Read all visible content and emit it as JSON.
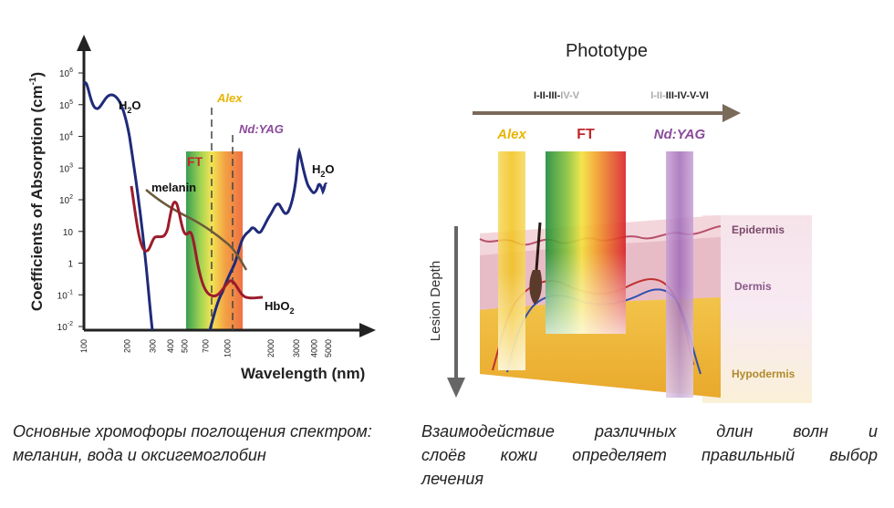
{
  "left_chart": {
    "y_axis_title": "Coefficients of Absorption (cm",
    "y_axis_title_sup": "-1",
    "y_axis_title_end": ")",
    "x_axis_title": "Wavelength (nm)",
    "y_ticks": [
      {
        "base": "10",
        "exp": "6"
      },
      {
        "base": "10",
        "exp": "5"
      },
      {
        "base": "10",
        "exp": "4"
      },
      {
        "base": "10",
        "exp": "3"
      },
      {
        "base": "10",
        "exp": "2"
      },
      {
        "base": "10",
        "exp": ""
      },
      {
        "base": "1",
        "exp": ""
      },
      {
        "base": "10",
        "exp": "-1"
      },
      {
        "base": "10",
        "exp": "-2"
      }
    ],
    "x_ticks": [
      "100",
      "200",
      "300",
      "400",
      "500",
      "700",
      "1000",
      "2000",
      "3000",
      "4000",
      "5000"
    ],
    "labels": {
      "h2o_left": "H",
      "h2o_left_sub": "2",
      "h2o_left_end": "O",
      "h2o_right": "H",
      "h2o_right_sub": "2",
      "h2o_right_end": "O",
      "melanin": "melanin",
      "hbo2": "HbO",
      "hbo2_sub": "2",
      "ft": "FT",
      "alex": "Alex",
      "ndyag": "Nd:YAG"
    },
    "colors": {
      "water": "#1f2a7a",
      "melanin": "#6b5a3a",
      "hbo2": "#9b1c2a",
      "alex": "#e8b400",
      "ndyag": "#8a4a9a",
      "ft": "#c0282a"
    }
  },
  "right_diagram": {
    "title": "Phototype",
    "phototype_left_dark": "I-II-III-",
    "phototype_left_light": "IV-V",
    "phototype_right_light": "I-II-",
    "phototype_right_dark": "III-IV-V-VI",
    "beam_alex": "Alex",
    "beam_ft": "FT",
    "beam_ndyag": "Nd:YAG",
    "lesion_depth": "Lesion Depth",
    "layer_epidermis": "Epidermis",
    "layer_dermis": "Dermis",
    "layer_hypodermis": "Hypodermis"
  },
  "captions": {
    "left": "Основные хромофоры поглощения спектром: меланин, вода и оксигемоглобин",
    "right_lines": [
      "Взаимодействие различных длин волн и",
      "слоёв кожи определяет правильный выбор",
      "лечения"
    ]
  }
}
